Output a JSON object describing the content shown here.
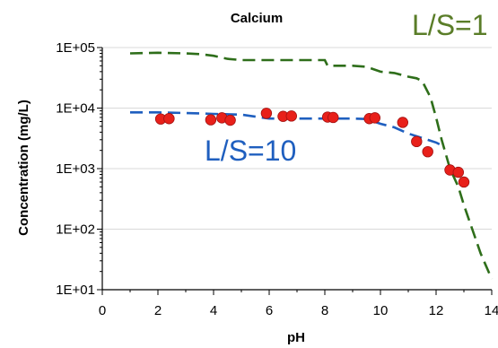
{
  "chart_data": {
    "type": "scatter",
    "title": "Calcium",
    "xlabel": "pH",
    "ylabel": "Concentration (mg/L)",
    "xlim": [
      0,
      14
    ],
    "ylim": [
      10,
      100000
    ],
    "yscale": "log",
    "x_ticks": [
      0,
      2,
      4,
      6,
      8,
      10,
      12,
      14
    ],
    "x_tick_labels": [
      "0",
      "2",
      "4",
      "6",
      "8",
      "10",
      "12",
      "14"
    ],
    "y_ticks": [
      10,
      100,
      1000,
      10000,
      100000
    ],
    "y_tick_labels": [
      "1E+01",
      "1E+02",
      "1E+03",
      "1E+04",
      "1E+05"
    ],
    "grid": "horizontal",
    "series": [
      {
        "style": "dashed",
        "color": "#2e6e1a",
        "x": [
          1.0,
          2.0,
          3.0,
          3.5,
          4.0,
          4.5,
          5.0,
          6.0,
          7.0,
          8.0,
          8.1,
          9.0,
          9.5,
          10.0,
          10.5,
          11.0,
          11.3,
          11.5,
          11.8,
          12.0,
          12.2,
          12.5,
          12.8,
          13.0,
          13.3,
          13.6,
          14.0
        ],
        "y": [
          80000,
          82000,
          80000,
          78000,
          73000,
          65000,
          62000,
          62000,
          62000,
          62000,
          50000,
          50000,
          48000,
          40000,
          38000,
          33000,
          31000,
          28000,
          15000,
          7000,
          3000,
          1000,
          500,
          250,
          100,
          40,
          15
        ]
      },
      {
        "style": "dashed",
        "color": "#1f5fbf",
        "x": [
          1.0,
          2.0,
          3.0,
          4.0,
          5.0,
          6.0,
          7.0,
          8.0,
          9.0,
          9.5,
          10.0,
          10.5,
          11.0,
          11.5,
          12.0,
          12.3
        ],
        "y": [
          8500,
          8500,
          8300,
          8000,
          7800,
          6700,
          6700,
          6700,
          6700,
          6600,
          5500,
          4800,
          3800,
          3200,
          2700,
          2300
        ]
      },
      {
        "style": "markers",
        "color": "#e8201a",
        "x": [
          2.1,
          2.4,
          3.9,
          4.3,
          4.6,
          5.9,
          6.5,
          6.8,
          8.1,
          8.3,
          9.6,
          9.8,
          10.8,
          11.3,
          11.7,
          12.5,
          12.8,
          13.0
        ],
        "y": [
          6600,
          6700,
          6400,
          6900,
          6300,
          8200,
          7300,
          7400,
          7100,
          7000,
          6700,
          6900,
          5800,
          2800,
          1900,
          950,
          870,
          600
        ]
      }
    ],
    "annotations": [
      {
        "text": "L/S=1",
        "color": "#5a7d28"
      },
      {
        "text": "L/S=10",
        "color": "#1f5fbf"
      }
    ]
  }
}
